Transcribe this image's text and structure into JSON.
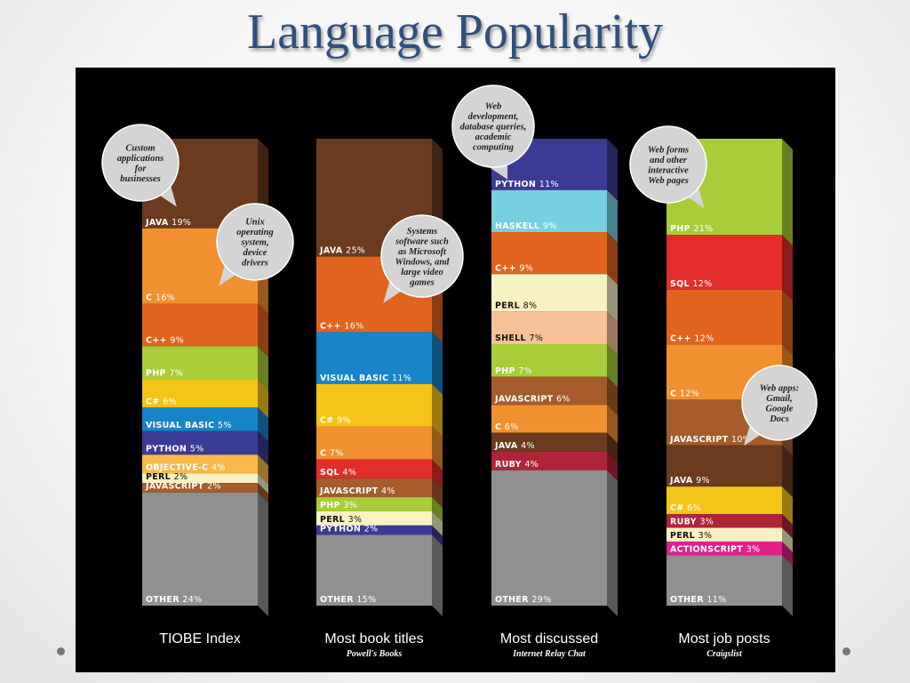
{
  "slide": {
    "title": "Language Popularity"
  },
  "colors": {
    "Java": "#6b3a1f",
    "C": "#f0902e",
    "C++": "#e0641e",
    "PHP": "#a9cc39",
    "C#": "#f5c418",
    "Visual Basic": "#1684c7",
    "Python": "#3b3a94",
    "Objective-C": "#f9b84a",
    "Perl": "#f7f1c3",
    "JavaScript": "#a55c2a",
    "Other": "#909090",
    "SQL": "#e22d2a",
    "Haskell": "#77cfe0",
    "Shell": "#f6c196",
    "Ruby": "#b0243a",
    "ActionScript": "#e0218a"
  },
  "chart_data": {
    "type": "bar",
    "stacked": true,
    "unit": "%",
    "categories": [
      "TIOBE Index",
      "Most book titles",
      "Most discussed",
      "Most job posts"
    ],
    "sources": [
      "",
      "Powell's Books",
      "Internet Relay Chat",
      "Craigslist"
    ],
    "columns": [
      {
        "title": "TIOBE Index",
        "source": "",
        "segments": [
          {
            "name": "JAVA",
            "key": "Java",
            "value": 19
          },
          {
            "name": "C",
            "key": "C",
            "value": 16
          },
          {
            "name": "C++",
            "key": "C++",
            "value": 9
          },
          {
            "name": "PHP",
            "key": "PHP",
            "value": 7
          },
          {
            "name": "C#",
            "key": "C#",
            "value": 6
          },
          {
            "name": "VISUAL BASIC",
            "key": "Visual Basic",
            "value": 5
          },
          {
            "name": "PYTHON",
            "key": "Python",
            "value": 5
          },
          {
            "name": "OBJECTIVE-C",
            "key": "Objective-C",
            "value": 4
          },
          {
            "name": "PERL",
            "key": "Perl",
            "value": 2
          },
          {
            "name": "JAVASCRIPT",
            "key": "JavaScript",
            "value": 2
          },
          {
            "name": "OTHER",
            "key": "Other",
            "value": 24
          }
        ]
      },
      {
        "title": "Most book titles",
        "source": "Powell's Books",
        "segments": [
          {
            "name": "JAVA",
            "key": "Java",
            "value": 25
          },
          {
            "name": "C++",
            "key": "C++",
            "value": 16
          },
          {
            "name": "VISUAL BASIC",
            "key": "Visual Basic",
            "value": 11
          },
          {
            "name": "C#",
            "key": "C#",
            "value": 9
          },
          {
            "name": "C",
            "key": "C",
            "value": 7
          },
          {
            "name": "SQL",
            "key": "SQL",
            "value": 4
          },
          {
            "name": "JAVASCRIPT",
            "key": "JavaScript",
            "value": 4
          },
          {
            "name": "PHP",
            "key": "PHP",
            "value": 3
          },
          {
            "name": "PERL",
            "key": "Perl",
            "value": 3
          },
          {
            "name": "PYTHON",
            "key": "Python",
            "value": 2
          },
          {
            "name": "OTHER",
            "key": "Other",
            "value": 15
          }
        ]
      },
      {
        "title": "Most discussed",
        "source": "Internet Relay Chat",
        "segments": [
          {
            "name": "PYTHON",
            "key": "Python",
            "value": 11
          },
          {
            "name": "HASKELL",
            "key": "Haskell",
            "value": 9
          },
          {
            "name": "C++",
            "key": "C++",
            "value": 9
          },
          {
            "name": "PERL",
            "key": "Perl",
            "value": 8
          },
          {
            "name": "SHELL",
            "key": "Shell",
            "value": 7
          },
          {
            "name": "PHP",
            "key": "PHP",
            "value": 7
          },
          {
            "name": "JAVASCRIPT",
            "key": "JavaScript",
            "value": 6
          },
          {
            "name": "C",
            "key": "C",
            "value": 6
          },
          {
            "name": "JAVA",
            "key": "Java",
            "value": 4
          },
          {
            "name": "RUBY",
            "key": "Ruby",
            "value": 4
          },
          {
            "name": "OTHER",
            "key": "Other",
            "value": 29
          }
        ]
      },
      {
        "title": "Most job posts",
        "source": "Craigslist",
        "segments": [
          {
            "name": "PHP",
            "key": "PHP",
            "value": 21
          },
          {
            "name": "SQL",
            "key": "SQL",
            "value": 12
          },
          {
            "name": "C++",
            "key": "C++",
            "value": 12
          },
          {
            "name": "C",
            "key": "C",
            "value": 12
          },
          {
            "name": "JAVASCRIPT",
            "key": "JavaScript",
            "value": 10
          },
          {
            "name": "JAVA",
            "key": "Java",
            "value": 9
          },
          {
            "name": "C#",
            "key": "C#",
            "value": 6
          },
          {
            "name": "RUBY",
            "key": "Ruby",
            "value": 3
          },
          {
            "name": "PERL",
            "key": "Perl",
            "value": 3
          },
          {
            "name": "ACTIONSCRIPT",
            "key": "ActionScript",
            "value": 3
          },
          {
            "name": "OTHER",
            "key": "Other",
            "value": 11
          }
        ]
      }
    ],
    "annotations": [
      {
        "column": 0,
        "text": [
          "Custom",
          "applications",
          "for",
          "businesses"
        ]
      },
      {
        "column": 0,
        "text": [
          "Unix",
          "operating",
          "system,",
          "device",
          "drivers"
        ]
      },
      {
        "column": 1,
        "text": [
          "Systems",
          "software such",
          "as Microsoft",
          "Windows, and",
          "large video",
          "games"
        ]
      },
      {
        "column": 2,
        "text": [
          "Web",
          "development,",
          "database queries,",
          "academic",
          "computing"
        ]
      },
      {
        "column": 3,
        "text": [
          "Web forms",
          "and other",
          "interactive",
          "Web pages"
        ]
      },
      {
        "column": 3,
        "text": [
          "Web apps:",
          "Gmail,",
          "Google",
          "Docs"
        ]
      }
    ]
  }
}
